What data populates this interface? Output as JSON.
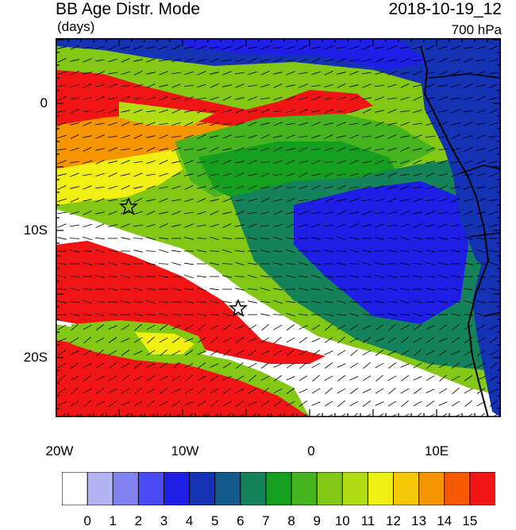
{
  "header": {
    "title": "BB Age Distr. Mode",
    "units": "(days)",
    "datetime": "2018-10-19_12",
    "level": "700 hPa"
  },
  "map": {
    "y_tick_labels": [
      "0",
      "10S",
      "20S"
    ],
    "x_tick_labels": [
      "20W",
      "10W",
      "0",
      "10E"
    ],
    "markers": [
      "star-marker-1",
      "star-marker-2"
    ]
  },
  "colorbar": {
    "tick_labels": [
      "0",
      "1",
      "2",
      "3",
      "4",
      "5",
      "6",
      "7",
      "8",
      "9",
      "10",
      "11",
      "12",
      "13",
      "14",
      "15"
    ],
    "colors": [
      "#ffffff",
      "#b4b4f5",
      "#8282f0",
      "#4b4bf5",
      "#1e1ee6",
      "#1432b4",
      "#145a8c",
      "#14825a",
      "#14a01e",
      "#46b41e",
      "#82c814",
      "#b4dc14",
      "#f0f014",
      "#f5c80a",
      "#f59600",
      "#f55a00",
      "#f01414"
    ]
  },
  "colors": {
    "land_white": "#ffffff",
    "coastline": "#000000"
  }
}
